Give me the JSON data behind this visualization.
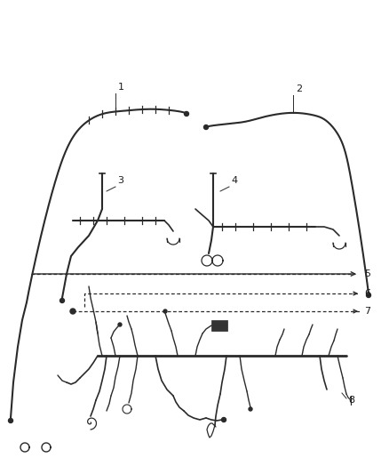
{
  "bg_color": "#ffffff",
  "line_color": "#2a2a2a",
  "label_color": "#1a1a1a",
  "fig_width": 4.38,
  "fig_height": 5.33
}
